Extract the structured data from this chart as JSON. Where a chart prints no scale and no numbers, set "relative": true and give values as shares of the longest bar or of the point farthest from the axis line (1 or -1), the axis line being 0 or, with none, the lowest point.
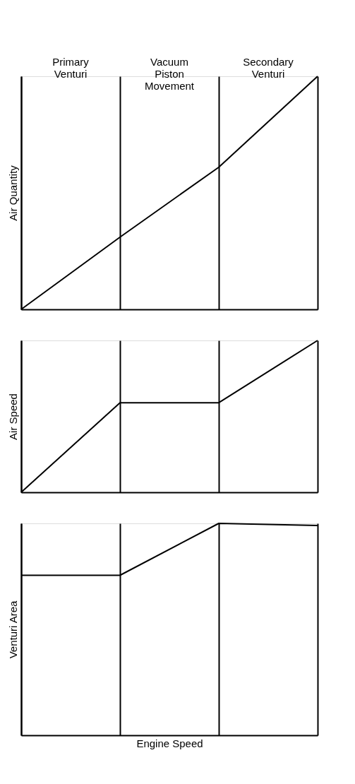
{
  "chart_data": [
    {
      "type": "line",
      "ylabel": "Air Quantity",
      "annotations": [
        "Primary Venturi",
        "Vacuum Piston Movement",
        "Secondary Venturi"
      ],
      "categories": [
        null,
        null,
        null,
        null
      ],
      "relative": true,
      "grid": "x",
      "tick_labels": false,
      "series": [
        {
          "color": "#000000",
          "values": [
            0,
            0.31,
            0.61,
            1
          ]
        }
      ]
    },
    {
      "type": "line",
      "ylabel": "Air Speed",
      "categories": [
        null,
        null,
        null,
        null
      ],
      "relative": true,
      "grid": "x",
      "tick_labels": false,
      "series": [
        {
          "color": "#000000",
          "values": [
            0,
            0.59,
            0.59,
            1
          ]
        }
      ]
    },
    {
      "type": "line",
      "ylabel": "Venturi Area",
      "xlabel": "Engine Speed",
      "categories": [
        null,
        null,
        null,
        null
      ],
      "relative": true,
      "grid": "x",
      "tick_labels": false,
      "series": [
        {
          "color": "#000000",
          "values": [
            0.755,
            0.755,
            1,
            0.99
          ]
        }
      ]
    }
  ]
}
